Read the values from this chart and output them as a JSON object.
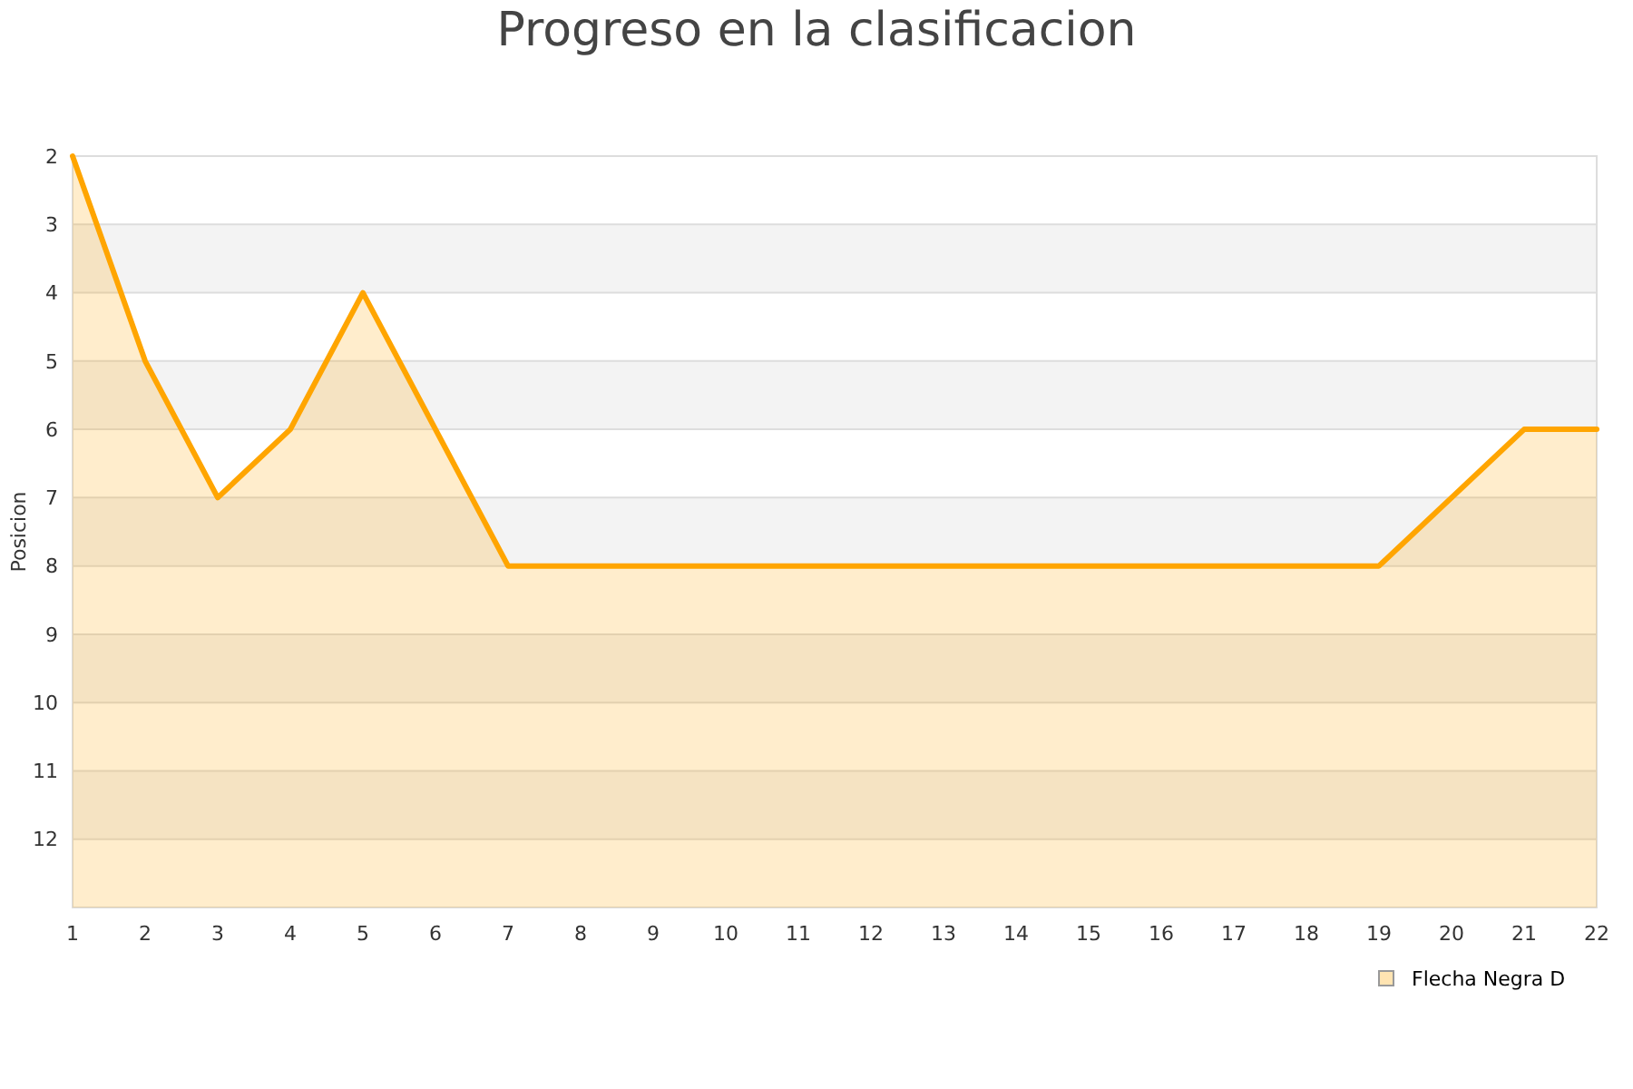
{
  "chart_data": {
    "type": "line",
    "title": "Progreso en la clasificacion",
    "ylabel": "Posicion",
    "x": [
      1,
      2,
      3,
      4,
      5,
      6,
      7,
      8,
      9,
      10,
      11,
      12,
      13,
      14,
      15,
      16,
      17,
      18,
      19,
      20,
      21,
      22
    ],
    "series": [
      {
        "name": "Flecha Negra D",
        "color": "#ffa500",
        "values": [
          2,
          5,
          7,
          6,
          4,
          6,
          8,
          8,
          8,
          8,
          8,
          8,
          8,
          8,
          8,
          8,
          8,
          8,
          8,
          7,
          6,
          6
        ],
        "lower": [
          13,
          13,
          13,
          13,
          13,
          13,
          13,
          13,
          13,
          13,
          13,
          13,
          13,
          13,
          13,
          13,
          13,
          13,
          13,
          13,
          13,
          13
        ],
        "upper": [
          2,
          5,
          7,
          6,
          4,
          6,
          8,
          8,
          8,
          8,
          8,
          8,
          8,
          8,
          8,
          8,
          8,
          8,
          8,
          7,
          6,
          6
        ]
      }
    ],
    "xlim": [
      1,
      22
    ],
    "xticks": [
      1,
      2,
      3,
      4,
      5,
      6,
      7,
      8,
      9,
      10,
      11,
      12,
      13,
      14,
      15,
      16,
      17,
      18,
      19,
      20,
      21,
      22
    ],
    "ylim": [
      13,
      2
    ],
    "yticks": [
      2,
      3,
      4,
      5,
      6,
      7,
      8,
      9,
      10,
      11,
      12
    ],
    "grid": "y",
    "legend": "bottom right",
    "marker": "none",
    "line_style": "solid"
  }
}
